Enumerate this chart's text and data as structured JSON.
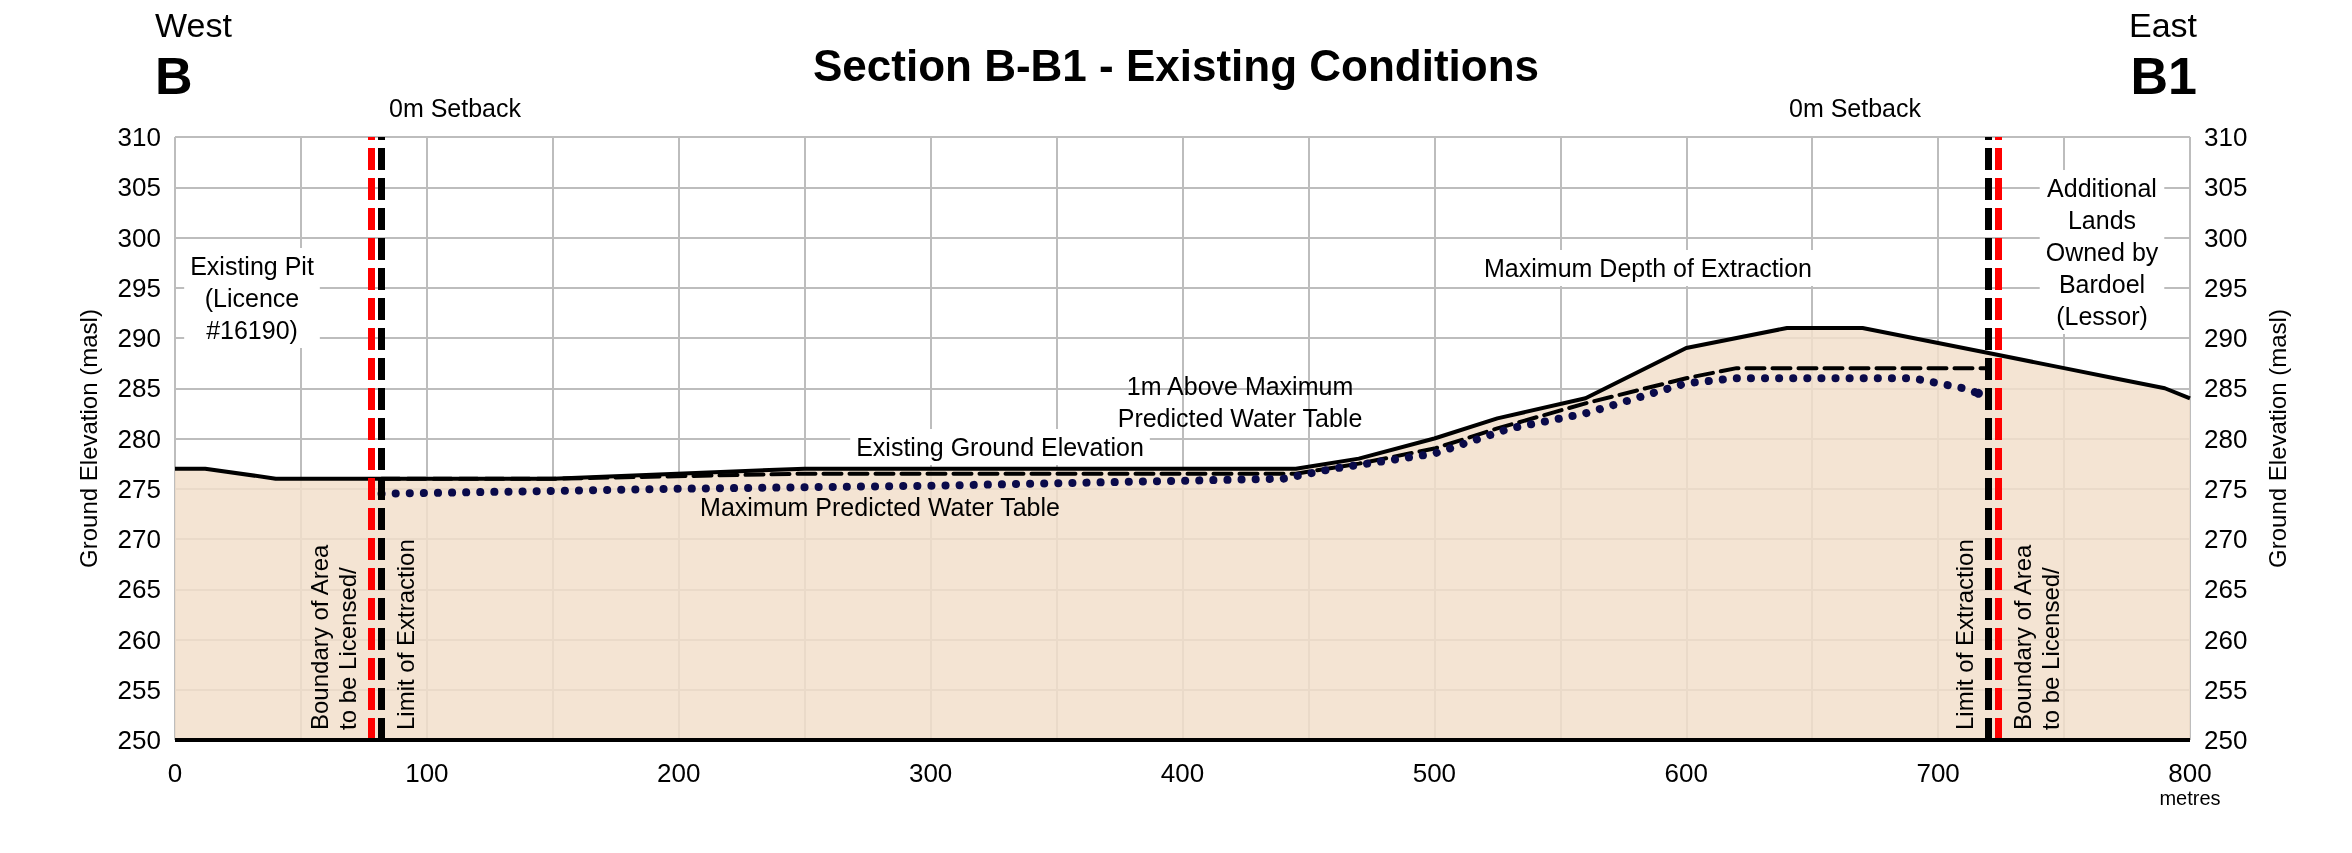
{
  "chart_data": {
    "type": "area",
    "title": "Section B-B1 - Existing Conditions",
    "xlabel": "metres",
    "ylabel": "Ground Elevation (masl)",
    "y2label": "Ground Elevation (masl)",
    "xlim": [
      0,
      800
    ],
    "xticks": [
      0,
      {
        "value": 50,
        "label": null
      },
      100,
      {
        "value": 150,
        "label": null
      },
      200,
      {
        "value": 250,
        "label": null
      },
      300,
      {
        "value": 350,
        "label": null
      },
      400,
      {
        "value": 450,
        "label": null
      },
      500,
      {
        "value": 550,
        "label": null
      },
      600,
      {
        "value": 650,
        "label": null
      },
      700,
      {
        "value": 750,
        "label": null
      },
      800
    ],
    "ylim": [
      250,
      310
    ],
    "yticks": [
      250,
      255,
      260,
      265,
      270,
      275,
      280,
      285,
      290,
      295,
      300,
      305,
      310
    ],
    "y2lim": [
      250,
      310
    ],
    "y2ticks": [
      250,
      255,
      260,
      265,
      270,
      275,
      280,
      285,
      290,
      295,
      300,
      305,
      310
    ],
    "grid": true,
    "series": [
      {
        "name": "Existing Ground Elevation",
        "color": "#f2dfcb",
        "line_style": "solid",
        "x": [
          0,
          12,
          40,
          80,
          150,
          250,
          445,
          470,
          500,
          525,
          560,
          600,
          640,
          670,
          700,
          720,
          750,
          770,
          790,
          800
        ],
        "values": [
          277,
          277,
          276,
          276,
          276,
          277,
          277,
          278,
          280,
          282,
          284,
          289,
          291,
          291,
          289.5,
          288.5,
          287,
          286,
          285,
          284
        ]
      },
      {
        "name": "1m Above Maximum\nPredicted Water Table",
        "type": "line",
        "color": "#000000",
        "line_style": "dashed",
        "x": [
          82,
          150,
          250,
          445,
          470,
          500,
          525,
          560,
          600,
          620,
          720
        ],
        "values": [
          276,
          276,
          276.5,
          276.5,
          277.5,
          279,
          281,
          283.5,
          286,
          287,
          287
        ]
      },
      {
        "name": "Maximum Predicted Water Table",
        "type": "line",
        "color": "#0a0a4a",
        "line_style": "dotted",
        "x": [
          82,
          200,
          300,
          440,
          460,
          500,
          530,
          560,
          600,
          620,
          690,
          710,
          716
        ],
        "values": [
          274.5,
          275,
          275.3,
          276,
          277,
          278.5,
          281,
          282.5,
          285.5,
          286,
          286,
          285,
          284.5
        ]
      }
    ],
    "ref_lines": [
      {
        "axis": "x",
        "value": 78,
        "label": "Boundary of Area\nto be Licensed/",
        "color": "#ff0000",
        "line_style": "dashed"
      },
      {
        "axis": "x",
        "value": 82,
        "label": "Limit of Extraction",
        "color": "#000000",
        "line_style": "dashed"
      },
      {
        "axis": "x",
        "value": 720,
        "label": "Limit of Extraction",
        "color": "#000000",
        "line_style": "dashed"
      },
      {
        "axis": "x",
        "value": 724,
        "label": "Boundary of Area\nto be Licensed/",
        "color": "#ff0000",
        "line_style": "dashed"
      }
    ],
    "annotations": [
      "West",
      "B",
      "East",
      "B1",
      "0m Setback",
      "0m Setback",
      "Existing Pit\n(Licence\n#16190)",
      "Additional\nLands\nOwned by\nBardoel\n(Lessor)",
      "Maximum Depth of Extraction"
    ]
  }
}
